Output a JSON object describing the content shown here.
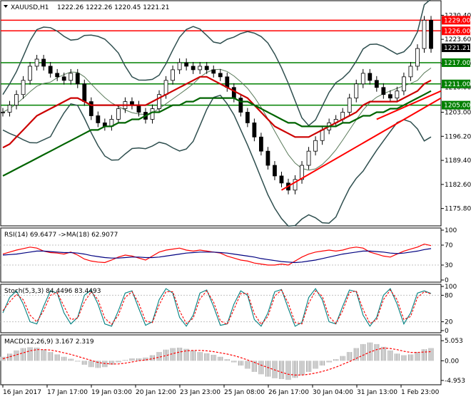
{
  "symbol_header": {
    "symbol": "XAUUSD,H1",
    "ohlc": "1222.26 1222.26 1220.45 1221.21"
  },
  "chart_data": [
    {
      "type": "line",
      "panel": "price",
      "title": "XAUUSD,H1 1222.26 1222.26 1220.45 1221.21",
      "y_ticks": [
        "1230.40",
        "1223.60",
        "1216.80",
        "1210.00",
        "1203.00",
        "1196.20",
        "1189.40",
        "1182.60",
        "1175.80"
      ],
      "ylim": [
        1171.5,
        1233.5
      ],
      "current_price": "1221.21",
      "horizontal_levels": [
        {
          "value": 1229.0,
          "label": "1229.00",
          "color": "#ff0000"
        },
        {
          "value": 1226.0,
          "label": "1226.00",
          "color": "#ff0000"
        },
        {
          "value": 1217.0,
          "label": "1217.00",
          "color": "#008000"
        },
        {
          "value": 1211.0,
          "label": "1211.00",
          "color": "#008000"
        },
        {
          "value": 1205.0,
          "label": "1205.00",
          "color": "#008000"
        }
      ],
      "price_series": [
        1203,
        1205,
        1208,
        1212,
        1216,
        1218,
        1216,
        1214,
        1213,
        1212,
        1214,
        1211,
        1206,
        1202,
        1200,
        1199,
        1201,
        1204,
        1206,
        1205,
        1203,
        1201,
        1204,
        1208,
        1212,
        1215,
        1217,
        1216,
        1215,
        1216,
        1215,
        1214,
        1213,
        1210,
        1207,
        1203,
        1200,
        1196,
        1192,
        1188,
        1185,
        1183,
        1181,
        1184,
        1188,
        1192,
        1195,
        1198,
        1200,
        1201,
        1203,
        1207,
        1211,
        1214,
        1212,
        1210,
        1208,
        1207,
        1209,
        1213,
        1216,
        1221,
        1229,
        1221
      ],
      "series": [
        {
          "name": "",
          "color": "#cc0000",
          "values": [
            1193,
            1194,
            1196,
            1198,
            1200,
            1202,
            1203,
            1204,
            1205,
            1206,
            1207,
            1207,
            1206,
            1205,
            1205,
            1205,
            1205,
            1205,
            1205,
            1205,
            1205,
            1205,
            1206,
            1207,
            1208,
            1209,
            1210,
            1211,
            1212,
            1213,
            1213,
            1212,
            1211,
            1210,
            1209,
            1208,
            1207,
            1205,
            1203,
            1201,
            1199,
            1198,
            1197,
            1196,
            1196,
            1196,
            1197,
            1198,
            1199,
            1200,
            1201,
            1202,
            1203,
            1205,
            1206,
            1206,
            1206,
            1206,
            1206,
            1207,
            1208,
            1209,
            1211,
            1212
          ]
        },
        {
          "name": "",
          "color": "#006400",
          "values": [
            1185,
            1186,
            1187,
            1188,
            1189,
            1190,
            1191,
            1192,
            1193,
            1194,
            1195,
            1196,
            1197,
            1198,
            1198,
            1199,
            1199,
            1200,
            1200,
            1201,
            1201,
            1202,
            1203,
            1203,
            1204,
            1205,
            1205,
            1206,
            1206,
            1207,
            1207,
            1207,
            1207,
            1207,
            1207,
            1206,
            1206,
            1205,
            1204,
            1203,
            1202,
            1201,
            1200,
            1200,
            1199,
            1199,
            1199,
            1199,
            1199,
            1199,
            1200,
            1200,
            1201,
            1202,
            1202,
            1203,
            1203,
            1204,
            1204,
            1205,
            1206,
            1207,
            1208,
            1209
          ]
        }
      ],
      "trendlines": [
        {
          "from": [
            41,
            1181
          ],
          "to": [
            63,
            1206
          ],
          "color": "#ff0000"
        },
        {
          "from": [
            55,
            1201
          ],
          "to": [
            63,
            1208
          ],
          "color": "#ff0000"
        }
      ]
    },
    {
      "type": "line",
      "panel": "rsi",
      "title": "RSI(14) 69.6477 ->MA(18) 62.9077",
      "ylim": [
        0,
        100
      ],
      "y_ticks": [
        "100",
        "70",
        "30",
        "0"
      ],
      "series": [
        {
          "name": "",
          "color": "#ff0000",
          "values": [
            52,
            56,
            60,
            63,
            66,
            64,
            58,
            55,
            54,
            52,
            56,
            50,
            42,
            38,
            36,
            35,
            40,
            46,
            50,
            48,
            44,
            40,
            48,
            56,
            60,
            62,
            64,
            60,
            58,
            60,
            58,
            56,
            54,
            48,
            44,
            40,
            38,
            34,
            32,
            30,
            30,
            32,
            30,
            38,
            46,
            52,
            56,
            58,
            60,
            58,
            60,
            64,
            66,
            64,
            56,
            52,
            48,
            46,
            52,
            58,
            62,
            66,
            72,
            69
          ]
        },
        {
          "name": "",
          "color": "#000080",
          "values": [
            50,
            51,
            52,
            54,
            56,
            58,
            58,
            57,
            56,
            55,
            55,
            54,
            52,
            49,
            47,
            45,
            44,
            44,
            45,
            46,
            46,
            45,
            45,
            46,
            48,
            50,
            52,
            54,
            55,
            56,
            56,
            56,
            55,
            54,
            52,
            50,
            48,
            46,
            43,
            41,
            39,
            37,
            36,
            35,
            36,
            38,
            40,
            43,
            46,
            49,
            52,
            54,
            56,
            58,
            58,
            57,
            56,
            54,
            53,
            54,
            56,
            58,
            61,
            63
          ]
        }
      ]
    },
    {
      "type": "line",
      "panel": "stochastic",
      "title": "Stoch(5,3,3) 84.4496 83.4493",
      "ylim": [
        0,
        100
      ],
      "y_ticks": [
        "100",
        "80",
        "20",
        "0"
      ],
      "series": [
        {
          "name": "",
          "color": "#008080",
          "values": [
            40,
            75,
            90,
            60,
            20,
            15,
            55,
            90,
            85,
            40,
            15,
            30,
            80,
            92,
            60,
            15,
            10,
            45,
            85,
            90,
            50,
            12,
            20,
            70,
            95,
            85,
            30,
            10,
            35,
            85,
            92,
            55,
            12,
            15,
            60,
            90,
            80,
            25,
            10,
            40,
            88,
            93,
            50,
            10,
            18,
            75,
            95,
            70,
            20,
            15,
            55,
            92,
            88,
            35,
            10,
            30,
            80,
            95,
            60,
            15,
            40,
            85,
            90,
            84
          ]
        },
        {
          "name": "",
          "color": "#ff0000",
          "values": [
            45,
            65,
            82,
            70,
            35,
            20,
            45,
            80,
            86,
            55,
            25,
            28,
            65,
            88,
            70,
            28,
            14,
            35,
            75,
            88,
            62,
            22,
            18,
            58,
            88,
            88,
            45,
            16,
            28,
            72,
            90,
            65,
            22,
            14,
            48,
            84,
            84,
            38,
            14,
            32,
            78,
            92,
            62,
            18,
            15,
            62,
            90,
            78,
            32,
            16,
            45,
            86,
            90,
            48,
            16,
            25,
            70,
            92,
            70,
            25,
            32,
            75,
            88,
            83
          ]
        }
      ]
    },
    {
      "type": "bar",
      "panel": "macd",
      "title": "MACD(12,26,9) 3.167 2.319",
      "ylim": [
        -5.5,
        5.8
      ],
      "y_ticks": [
        "5.053",
        "0.00",
        "-4.953"
      ],
      "values": [
        1.0,
        1.8,
        2.6,
        3.2,
        3.4,
        3.3,
        2.8,
        2.2,
        1.6,
        1.0,
        0.5,
        -0.2,
        -1.0,
        -1.6,
        -1.8,
        -1.6,
        -1.0,
        -0.4,
        0.2,
        0.6,
        0.6,
        0.8,
        1.4,
        2.2,
        2.8,
        3.2,
        3.3,
        3.0,
        2.6,
        2.2,
        1.9,
        1.5,
        1.0,
        0.4,
        -0.4,
        -1.2,
        -2.0,
        -2.8,
        -3.4,
        -4.0,
        -4.4,
        -4.6,
        -4.8,
        -4.3,
        -3.6,
        -2.8,
        -2.0,
        -1.2,
        -0.4,
        0.4,
        1.2,
        2.2,
        3.2,
        4.2,
        4.6,
        4.2,
        3.5,
        2.6,
        1.8,
        1.4,
        1.6,
        2.2,
        2.9,
        3.2
      ],
      "series": [
        {
          "name": "",
          "color": "#ff0000",
          "values": [
            0.5,
            1.0,
            1.5,
            2.0,
            2.5,
            2.8,
            2.8,
            2.7,
            2.4,
            2.0,
            1.6,
            1.1,
            0.6,
            0.1,
            -0.4,
            -0.7,
            -0.8,
            -0.8,
            -0.6,
            -0.3,
            0.0,
            0.2,
            0.5,
            0.9,
            1.3,
            1.8,
            2.2,
            2.5,
            2.6,
            2.6,
            2.5,
            2.3,
            2.0,
            1.7,
            1.3,
            0.8,
            0.2,
            -0.4,
            -1.1,
            -1.7,
            -2.3,
            -2.9,
            -3.4,
            -3.6,
            -3.6,
            -3.4,
            -3.1,
            -2.7,
            -2.2,
            -1.6,
            -0.9,
            -0.2,
            0.6,
            1.4,
            2.2,
            2.8,
            3.2,
            3.1,
            2.8,
            2.4,
            2.1,
            2.1,
            2.2,
            2.3
          ]
        }
      ]
    }
  ],
  "indicators": {
    "rsi": "RSI(14) 69.6477 ->MA(18) 62.9077",
    "stoch": "Stoch(5,3,3) 84.4496 83.4493",
    "macd": "MACD(12,26,9) 3.167 2.319"
  },
  "x_labels": [
    "16 Jan 2017",
    "17 Jan 17:00",
    "19 Jan 03:00",
    "20 Jan 12:00",
    "23 Jan 23:00",
    "25 Jan 08:00",
    "26 Jan 17:00",
    "30 Jan 04:00",
    "31 Jan 13:00",
    "1 Feb 23:00"
  ],
  "colors": {
    "candle": "#000000",
    "bollinger": "#2f4f4f",
    "red_ma": "#cc0000",
    "green_ma": "#006400",
    "level_green": "#008000",
    "level_red": "#ff0000",
    "current_price_bg": "#000000"
  }
}
